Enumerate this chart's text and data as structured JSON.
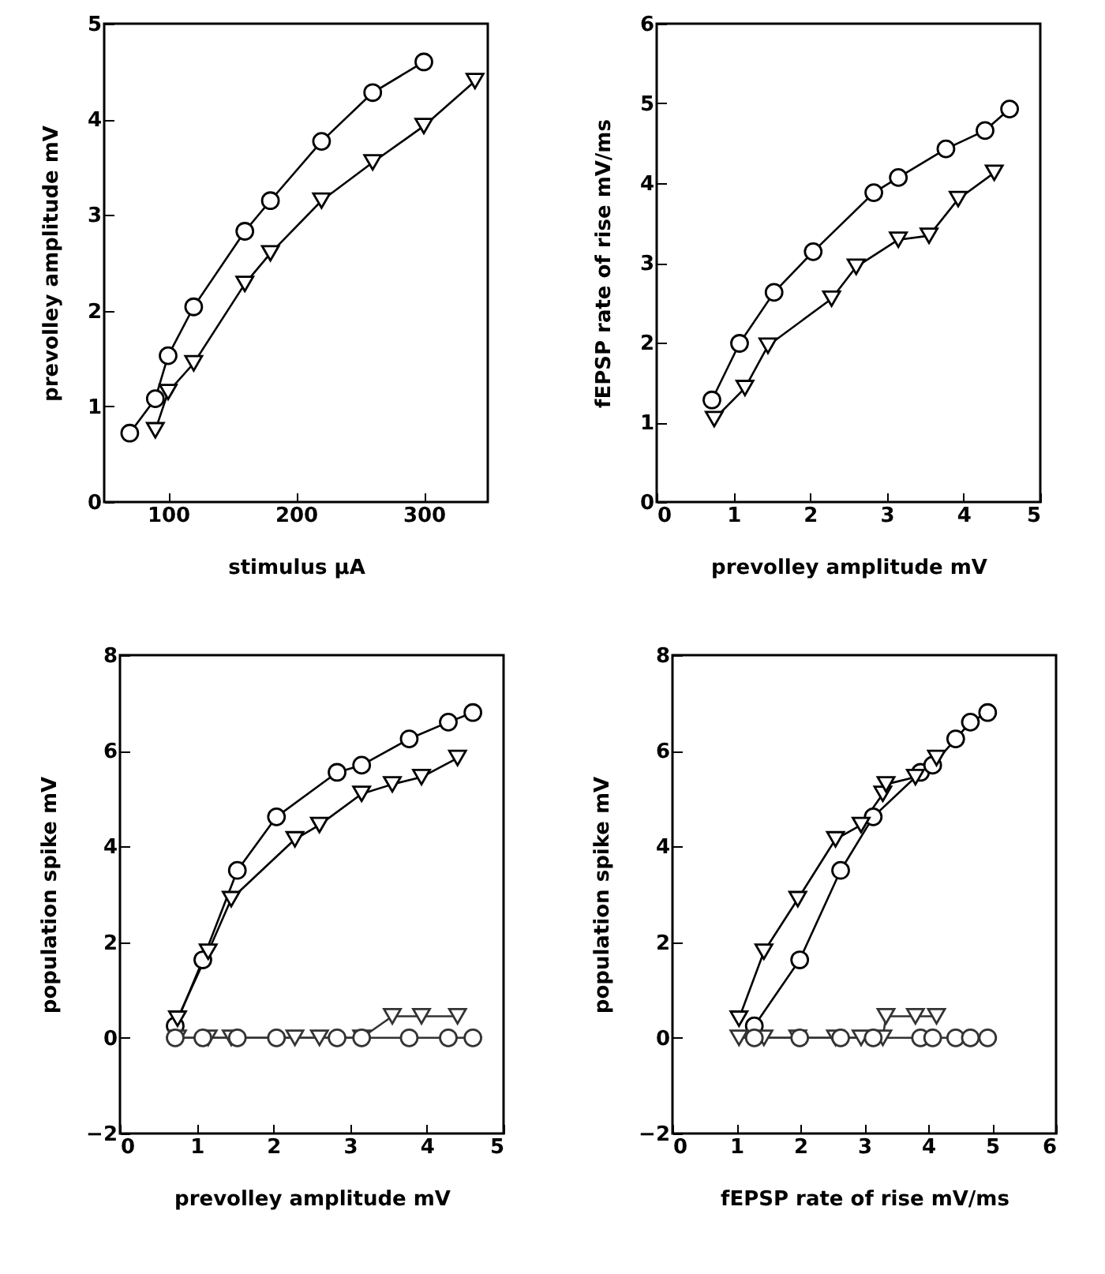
{
  "chart_data": [
    {
      "type": "line",
      "xlabel": "stimulus µA",
      "ylabel": "prevolley amplitude mV",
      "xlim": [
        50,
        350
      ],
      "xticks": [
        100,
        200,
        300
      ],
      "ylim": [
        0,
        5
      ],
      "yticks": [
        0,
        1,
        2,
        3,
        4,
        5
      ],
      "grid": false,
      "legend": false,
      "line_style": "solid",
      "series": [
        {
          "color": "#000000",
          "marker": "circle",
          "x": [
            70,
            90,
            100,
            120,
            160,
            180,
            220,
            260,
            300
          ],
          "values": [
            0.72,
            1.08,
            1.53,
            2.04,
            2.83,
            3.15,
            3.77,
            4.28,
            4.6
          ]
        },
        {
          "color": "#000000",
          "marker": "triangle",
          "x": [
            90,
            100,
            120,
            160,
            180,
            220,
            260,
            300,
            340
          ],
          "values": [
            0.75,
            1.15,
            1.45,
            2.28,
            2.6,
            3.15,
            3.55,
            3.93,
            4.4
          ]
        }
      ]
    },
    {
      "type": "line",
      "xlabel": "prevolley amplitude mV",
      "ylabel": "fEPSP rate of rise mV/ms",
      "xlim": [
        0,
        5
      ],
      "xticks": [
        0,
        1,
        2,
        3,
        4,
        5
      ],
      "ylim": [
        0,
        6
      ],
      "yticks": [
        0,
        1,
        2,
        3,
        4,
        5,
        6
      ],
      "grid": false,
      "legend": false,
      "line_style": "solid",
      "series": [
        {
          "color": "#000000",
          "marker": "circle",
          "x": [
            0.72,
            1.08,
            1.53,
            2.04,
            2.83,
            3.15,
            3.77,
            4.28,
            4.6
          ],
          "values": [
            1.28,
            1.99,
            2.63,
            3.14,
            3.88,
            4.07,
            4.43,
            4.66,
            4.93
          ]
        },
        {
          "color": "#000000",
          "marker": "triangle",
          "x": [
            0.75,
            1.15,
            1.45,
            2.28,
            2.6,
            3.15,
            3.55,
            3.93,
            4.4
          ],
          "values": [
            1.04,
            1.43,
            1.96,
            2.55,
            2.95,
            3.29,
            3.34,
            3.8,
            4.13
          ]
        }
      ]
    },
    {
      "type": "line",
      "xlabel": "prevolley amplitude mV",
      "ylabel": "population spike mV",
      "xlim": [
        0,
        5
      ],
      "xticks": [
        0,
        1,
        2,
        3,
        4,
        5
      ],
      "ylim": [
        -2,
        8
      ],
      "yticks": [
        -2,
        0,
        2,
        4,
        6,
        8
      ],
      "grid": false,
      "legend": false,
      "line_style": "solid",
      "series": [
        {
          "color": "#000000",
          "marker": "circle",
          "x": [
            0.72,
            1.08,
            1.53,
            2.04,
            2.83,
            3.15,
            3.77,
            4.28,
            4.6
          ],
          "values": [
            0.25,
            1.63,
            3.5,
            4.62,
            5.55,
            5.7,
            6.25,
            6.6,
            6.8
          ]
        },
        {
          "color": "#000000",
          "marker": "triangle",
          "x": [
            0.75,
            1.15,
            1.45,
            2.28,
            2.6,
            3.15,
            3.55,
            3.93,
            4.4
          ],
          "values": [
            0.4,
            1.8,
            2.9,
            4.15,
            4.45,
            5.1,
            5.3,
            5.45,
            5.85
          ]
        },
        {
          "color": "#333333",
          "marker": "triangle",
          "x": [
            0.75,
            1.15,
            1.45,
            2.28,
            2.6,
            3.15,
            3.55,
            3.93,
            4.4
          ],
          "values": [
            0,
            0,
            0,
            0,
            0,
            0,
            0.45,
            0.45,
            0.45
          ]
        },
        {
          "color": "#333333",
          "marker": "circle",
          "x": [
            0.72,
            1.08,
            1.53,
            2.04,
            2.83,
            3.15,
            3.77,
            4.28,
            4.6
          ],
          "values": [
            0,
            0,
            0,
            0,
            0,
            0,
            0,
            0,
            0
          ]
        }
      ]
    },
    {
      "type": "line",
      "xlabel": "fEPSP rate of rise mV/ms",
      "ylabel": "population spike mV",
      "xlim": [
        0,
        6
      ],
      "xticks": [
        0,
        1,
        2,
        3,
        4,
        5,
        6
      ],
      "ylim": [
        -2,
        8
      ],
      "yticks": [
        -2,
        0,
        2,
        4,
        6,
        8
      ],
      "grid": false,
      "legend": false,
      "line_style": "solid",
      "series": [
        {
          "color": "#000000",
          "marker": "circle",
          "x": [
            1.28,
            1.99,
            2.63,
            3.14,
            3.88,
            4.07,
            4.43,
            4.66,
            4.93
          ],
          "values": [
            0.25,
            1.63,
            3.5,
            4.62,
            5.55,
            5.7,
            6.25,
            6.6,
            6.8
          ]
        },
        {
          "color": "#000000",
          "marker": "triangle",
          "x": [
            1.04,
            1.43,
            1.96,
            2.55,
            2.95,
            3.29,
            3.34,
            3.8,
            4.13
          ],
          "values": [
            0.4,
            1.8,
            2.9,
            4.15,
            4.45,
            5.1,
            5.3,
            5.45,
            5.85
          ]
        },
        {
          "color": "#333333",
          "marker": "triangle",
          "x": [
            1.04,
            1.43,
            1.96,
            2.55,
            2.95,
            3.29,
            3.34,
            3.8,
            4.13
          ],
          "values": [
            0,
            0,
            0,
            0,
            0,
            0,
            0.45,
            0.45,
            0.45
          ]
        },
        {
          "color": "#333333",
          "marker": "circle",
          "x": [
            1.28,
            1.99,
            2.63,
            3.14,
            3.88,
            4.07,
            4.43,
            4.66,
            4.93
          ],
          "values": [
            0,
            0,
            0,
            0,
            0,
            0,
            0,
            0,
            0
          ]
        }
      ]
    }
  ]
}
